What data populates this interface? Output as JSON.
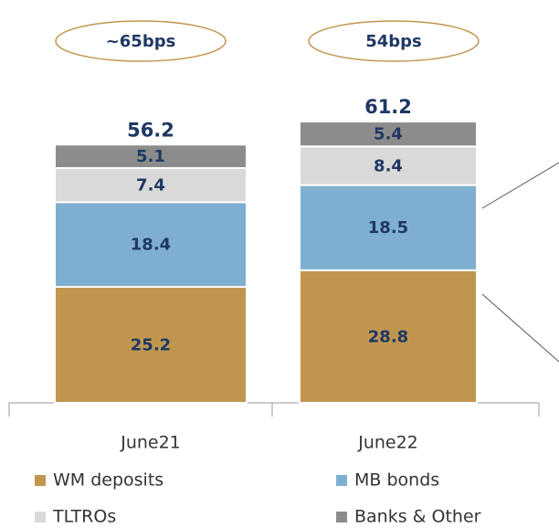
{
  "chart_data": {
    "type": "stacked_bar",
    "categories": [
      "June21",
      "June22"
    ],
    "series": [
      {
        "name": "WM deposits",
        "color": "#c0964f",
        "values": [
          25.2,
          28.8
        ]
      },
      {
        "name": "MB bonds",
        "color": "#7fafd0",
        "values": [
          18.4,
          18.5
        ]
      },
      {
        "name": "TLTROs",
        "color": "#d9d9d9",
        "values": [
          7.4,
          8.4
        ]
      },
      {
        "name": "Banks & Other",
        "color": "#8c8c8c",
        "values": [
          5.1,
          5.4
        ]
      }
    ],
    "totals": [
      56.2,
      61.2
    ],
    "bubbles": [
      "~65bps",
      "54bps"
    ]
  }
}
